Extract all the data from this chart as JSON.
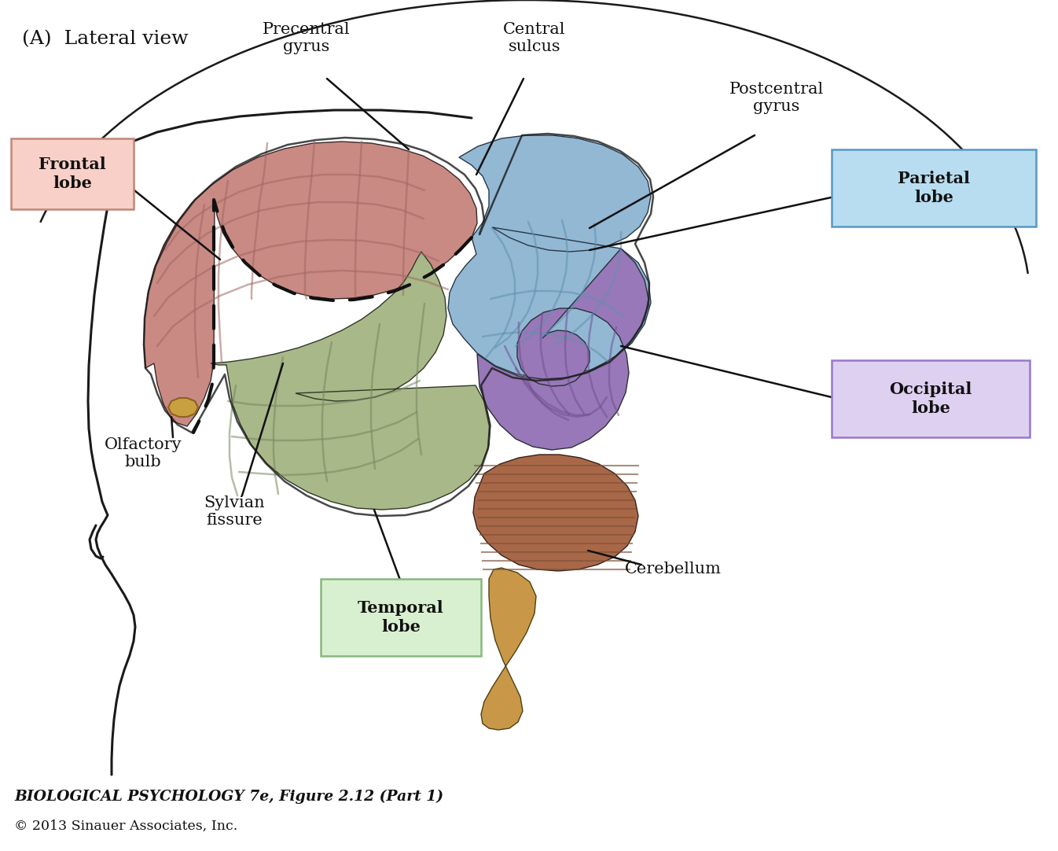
{
  "title_label": "(A)  Lateral view",
  "figure_caption_line1": "BIOLOGICAL PSYCHOLOGY 7e, Figure 2.12 (Part 1)",
  "figure_caption_line2": "© 2013 Sinauer Associates, Inc.",
  "background_color": "#ffffff",
  "lobe_colors": {
    "frontal": "#c98a84",
    "parietal": "#92b8d4",
    "temporal": "#a8b888",
    "occipital": "#9878b8",
    "cerebellum": "#a86848",
    "brainstem": "#c89848"
  },
  "sulci_colors": {
    "frontal": "#a06860",
    "parietal": "#6090b0",
    "temporal": "#788860",
    "occipital": "#705090",
    "cerebellum": "#805038"
  },
  "label_box_colors": {
    "frontal": {
      "face": "#f8d0c8",
      "edge": "#c08878"
    },
    "parietal": {
      "face": "#b8ddf0",
      "edge": "#5898c0"
    },
    "temporal": {
      "face": "#d8f0d0",
      "edge": "#88b880"
    },
    "occipital": {
      "face": "#ddd0f0",
      "edge": "#9878c8"
    }
  },
  "figsize": [
    13.46,
    10.82
  ],
  "dpi": 100
}
